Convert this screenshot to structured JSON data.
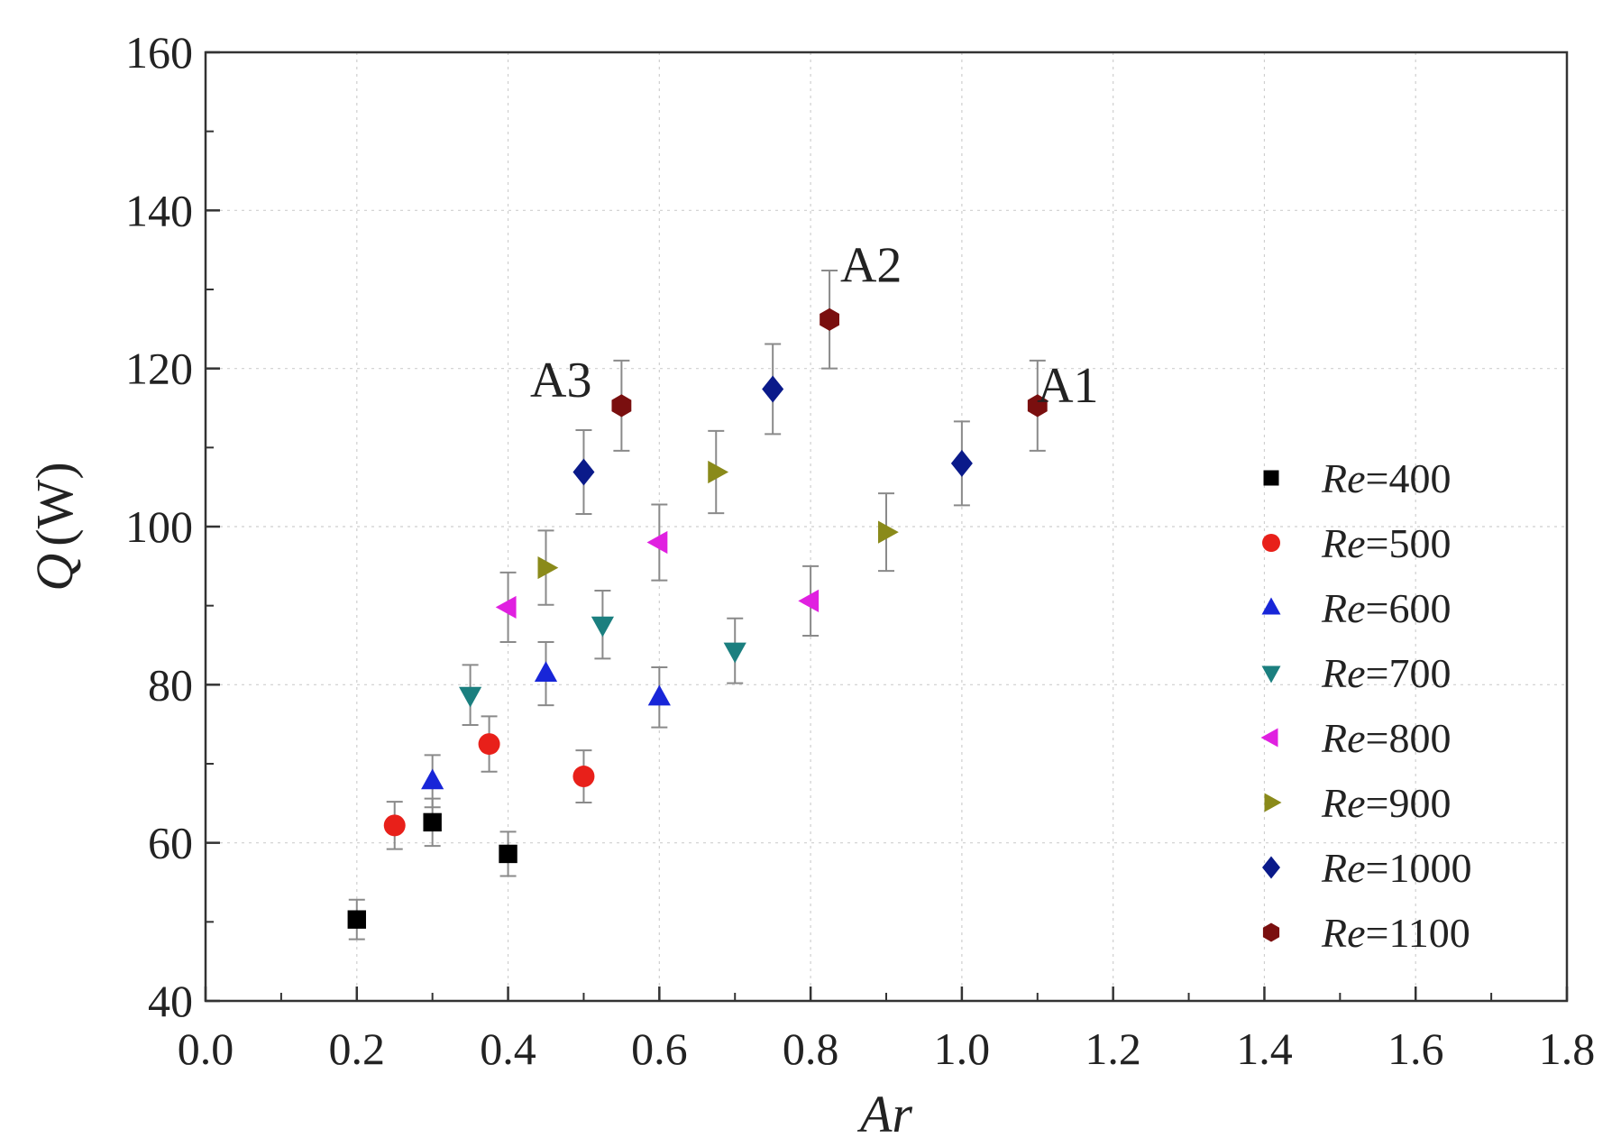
{
  "chart_data": {
    "type": "scatter",
    "title": "",
    "xlabel": "Ar",
    "ylabel": "Q (W)",
    "xlim": [
      0.0,
      1.8
    ],
    "ylim": [
      40,
      160
    ],
    "xticks": [
      "0.0",
      "0.2",
      "0.4",
      "0.6",
      "0.8",
      "1.0",
      "1.2",
      "1.4",
      "1.6",
      "1.8"
    ],
    "yticks": [
      "40",
      "60",
      "80",
      "100",
      "120",
      "140",
      "160"
    ],
    "grid": true,
    "legend_position": "right",
    "error_bars": true,
    "series": [
      {
        "name": "Re=400",
        "label_italic": "Re",
        "label_rest": "=400",
        "marker": "square",
        "color": "#000000",
        "points": [
          {
            "x": 0.2,
            "y": 50.3,
            "err": 2.5
          },
          {
            "x": 0.3,
            "y": 62.6,
            "err": 3.0
          },
          {
            "x": 0.4,
            "y": 58.6,
            "err": 2.8
          }
        ]
      },
      {
        "name": "Re=500",
        "label_italic": "Re",
        "label_rest": "=500",
        "marker": "circle",
        "color": "#e8201a",
        "points": [
          {
            "x": 0.25,
            "y": 62.2,
            "err": 3.0
          },
          {
            "x": 0.375,
            "y": 72.5,
            "err": 3.5
          },
          {
            "x": 0.5,
            "y": 68.4,
            "err": 3.3
          }
        ]
      },
      {
        "name": "Re=600",
        "label_italic": "Re",
        "label_rest": "=600",
        "marker": "triangle-up",
        "color": "#1826d8",
        "points": [
          {
            "x": 0.3,
            "y": 67.8,
            "err": 3.3
          },
          {
            "x": 0.45,
            "y": 81.4,
            "err": 4.0
          },
          {
            "x": 0.6,
            "y": 78.4,
            "err": 3.8
          }
        ]
      },
      {
        "name": "Re=700",
        "label_italic": "Re",
        "label_rest": "=700",
        "marker": "triangle-down",
        "color": "#1b7f7f",
        "points": [
          {
            "x": 0.35,
            "y": 78.7,
            "err": 3.8
          },
          {
            "x": 0.525,
            "y": 87.6,
            "err": 4.3
          },
          {
            "x": 0.7,
            "y": 84.3,
            "err": 4.1
          }
        ]
      },
      {
        "name": "Re=800",
        "label_italic": "Re",
        "label_rest": "=800",
        "marker": "triangle-left",
        "color": "#e020e0",
        "points": [
          {
            "x": 0.4,
            "y": 89.8,
            "err": 4.4
          },
          {
            "x": 0.6,
            "y": 98.0,
            "err": 4.8
          },
          {
            "x": 0.8,
            "y": 90.6,
            "err": 4.4
          }
        ]
      },
      {
        "name": "Re=900",
        "label_italic": "Re",
        "label_rest": "=900",
        "marker": "triangle-right",
        "color": "#8a8a1a",
        "points": [
          {
            "x": 0.45,
            "y": 94.8,
            "err": 4.7
          },
          {
            "x": 0.675,
            "y": 106.9,
            "err": 5.2
          },
          {
            "x": 0.9,
            "y": 99.3,
            "err": 4.9
          }
        ]
      },
      {
        "name": "Re=1000",
        "label_italic": "Re",
        "label_rest": "=1000",
        "marker": "diamond",
        "color": "#0a1a8a",
        "points": [
          {
            "x": 0.5,
            "y": 106.9,
            "err": 5.3
          },
          {
            "x": 0.75,
            "y": 117.4,
            "err": 5.7
          },
          {
            "x": 1.0,
            "y": 108.0,
            "err": 5.3
          }
        ]
      },
      {
        "name": "Re=1100",
        "label_italic": "Re",
        "label_rest": "=1100",
        "marker": "hexagon",
        "color": "#7a0f0f",
        "points": [
          {
            "x": 0.55,
            "y": 115.3,
            "err": 5.7
          },
          {
            "x": 0.825,
            "y": 126.2,
            "err": 6.2
          },
          {
            "x": 1.1,
            "y": 115.3,
            "err": 5.7
          }
        ]
      }
    ],
    "annotations": [
      {
        "text": "A3",
        "x": 0.47,
        "y": 118.5
      },
      {
        "text": "A2",
        "x": 0.88,
        "y": 133.0
      },
      {
        "text": "A1",
        "x": 1.14,
        "y": 117.8
      }
    ]
  }
}
